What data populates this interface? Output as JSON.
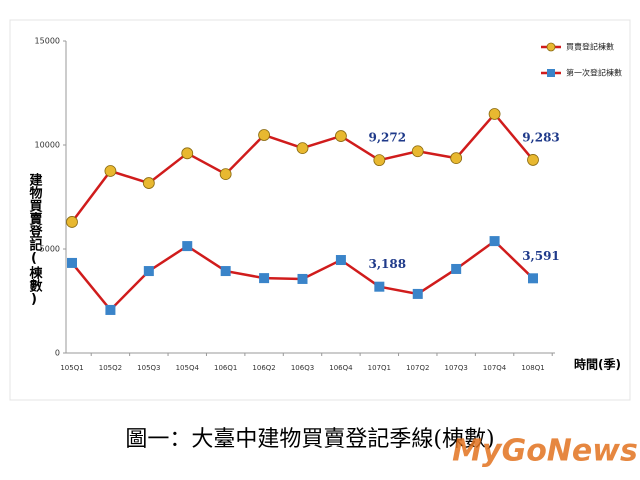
{
  "chart_data": {
    "type": "line",
    "categories": [
      "105Q1",
      "105Q2",
      "105Q3",
      "105Q4",
      "106Q1",
      "106Q2",
      "106Q3",
      "106Q4",
      "107Q1",
      "107Q2",
      "107Q3",
      "107Q4",
      "108Q1"
    ],
    "series": [
      {
        "name": "買賣登記棟數",
        "color": "#e8b830",
        "line_color": "#d01c1c",
        "marker": "circle",
        "values": [
          6300,
          8750,
          8170,
          9600,
          8600,
          10480,
          9850,
          10430,
          9272,
          9700,
          9370,
          11490,
          9283
        ],
        "value_labels": [
          null,
          null,
          null,
          null,
          null,
          null,
          null,
          null,
          "9,272",
          null,
          null,
          null,
          "9,283"
        ]
      },
      {
        "name": "第一次登記棟數",
        "color": "#3a84c9",
        "line_color": "#d01c1c",
        "marker": "square",
        "values": [
          4330,
          2070,
          3940,
          5140,
          3940,
          3600,
          3560,
          4470,
          3188,
          2840,
          4040,
          5380,
          3591
        ],
        "value_labels": [
          null,
          null,
          null,
          null,
          null,
          null,
          null,
          null,
          "3,188",
          null,
          null,
          null,
          "3,591"
        ]
      }
    ],
    "y_label": "建物買賣登記(棟數)",
    "x_label": "時間(季)",
    "ylim": [
      0,
      15000
    ],
    "yticks": [
      0,
      5000,
      10000,
      15000
    ],
    "legend": "top-right",
    "caption": "圖一：大臺中建物買賣登記季線(棟數)",
    "watermark": "MyGoNews"
  }
}
